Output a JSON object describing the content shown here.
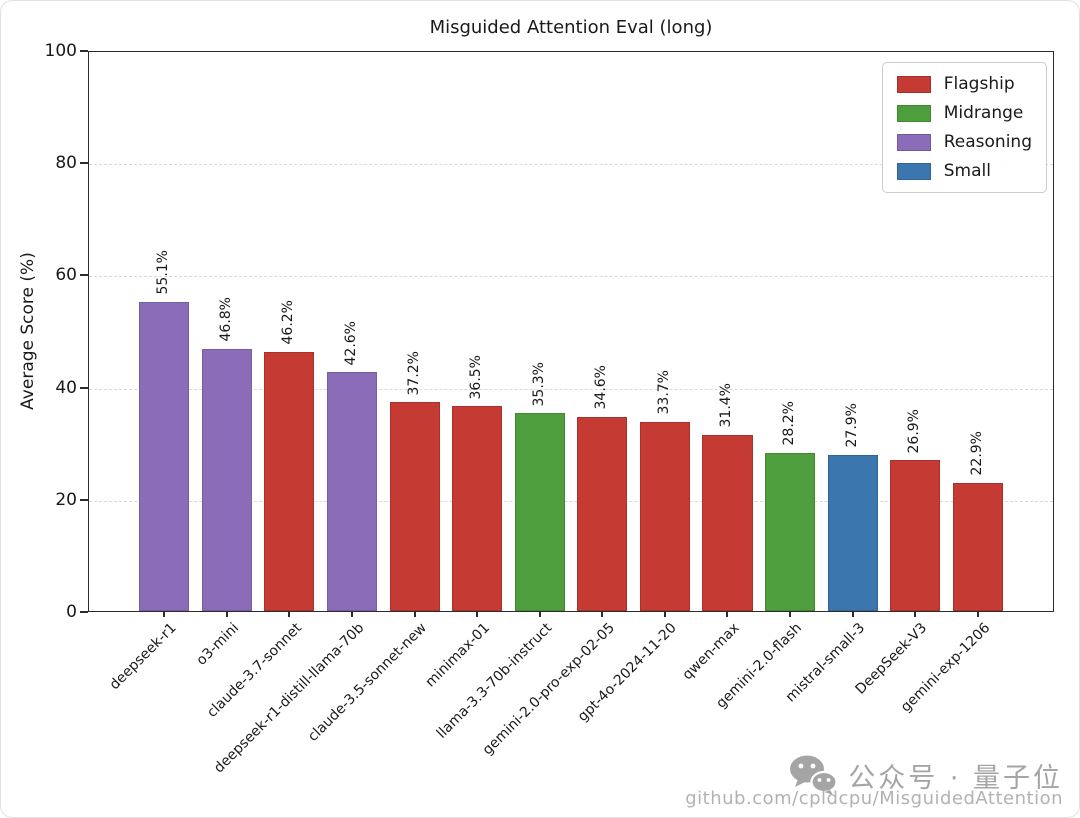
{
  "chart_data": {
    "type": "bar",
    "title": "Misguided Attention Eval (long)",
    "xlabel": "",
    "ylabel": "Average Score (%)",
    "ylim": [
      0,
      100
    ],
    "yticks": [
      0,
      20,
      40,
      60,
      80,
      100
    ],
    "grid": "horizontal-dashed",
    "legend_position": "upper-right",
    "bars": [
      {
        "model": "deepseek-r1",
        "value": 55.1,
        "label": "55.1%",
        "category": "Reasoning"
      },
      {
        "model": "o3-mini",
        "value": 46.8,
        "label": "46.8%",
        "category": "Reasoning"
      },
      {
        "model": "claude-3.7-sonnet",
        "value": 46.2,
        "label": "46.2%",
        "category": "Flagship"
      },
      {
        "model": "deepseek-r1-distill-llama-70b",
        "value": 42.6,
        "label": "42.6%",
        "category": "Reasoning"
      },
      {
        "model": "claude-3.5-sonnet-new",
        "value": 37.2,
        "label": "37.2%",
        "category": "Flagship"
      },
      {
        "model": "minimax-01",
        "value": 36.5,
        "label": "36.5%",
        "category": "Flagship"
      },
      {
        "model": "llama-3.3-70b-instruct",
        "value": 35.3,
        "label": "35.3%",
        "category": "Midrange"
      },
      {
        "model": "gemini-2.0-pro-exp-02-05",
        "value": 34.6,
        "label": "34.6%",
        "category": "Flagship"
      },
      {
        "model": "gpt-4o-2024-11-20",
        "value": 33.7,
        "label": "33.7%",
        "category": "Flagship"
      },
      {
        "model": "qwen-max",
        "value": 31.4,
        "label": "31.4%",
        "category": "Flagship"
      },
      {
        "model": "gemini-2.0-flash",
        "value": 28.2,
        "label": "28.2%",
        "category": "Midrange"
      },
      {
        "model": "mistral-small-3",
        "value": 27.9,
        "label": "27.9%",
        "category": "Small"
      },
      {
        "model": "DeepSeek-V3",
        "value": 26.9,
        "label": "26.9%",
        "category": "Flagship"
      },
      {
        "model": "gemini-exp-1206",
        "value": 22.9,
        "label": "22.9%",
        "category": "Flagship"
      }
    ],
    "category_colors": {
      "Flagship": "#c53a32",
      "Midrange": "#4f9e3d",
      "Reasoning": "#8b6cb8",
      "Small": "#3b76ae"
    },
    "legend": {
      "items": [
        {
          "label": "Flagship",
          "color": "#c53a32"
        },
        {
          "label": "Midrange",
          "color": "#4f9e3d"
        },
        {
          "label": "Reasoning",
          "color": "#8b6cb8"
        },
        {
          "label": "Small",
          "color": "#3b76ae"
        }
      ]
    }
  },
  "watermark": {
    "wechat_text": "公众号 · 量子位",
    "github_text": "github.com/cpldcpu/MisguidedAttention"
  }
}
